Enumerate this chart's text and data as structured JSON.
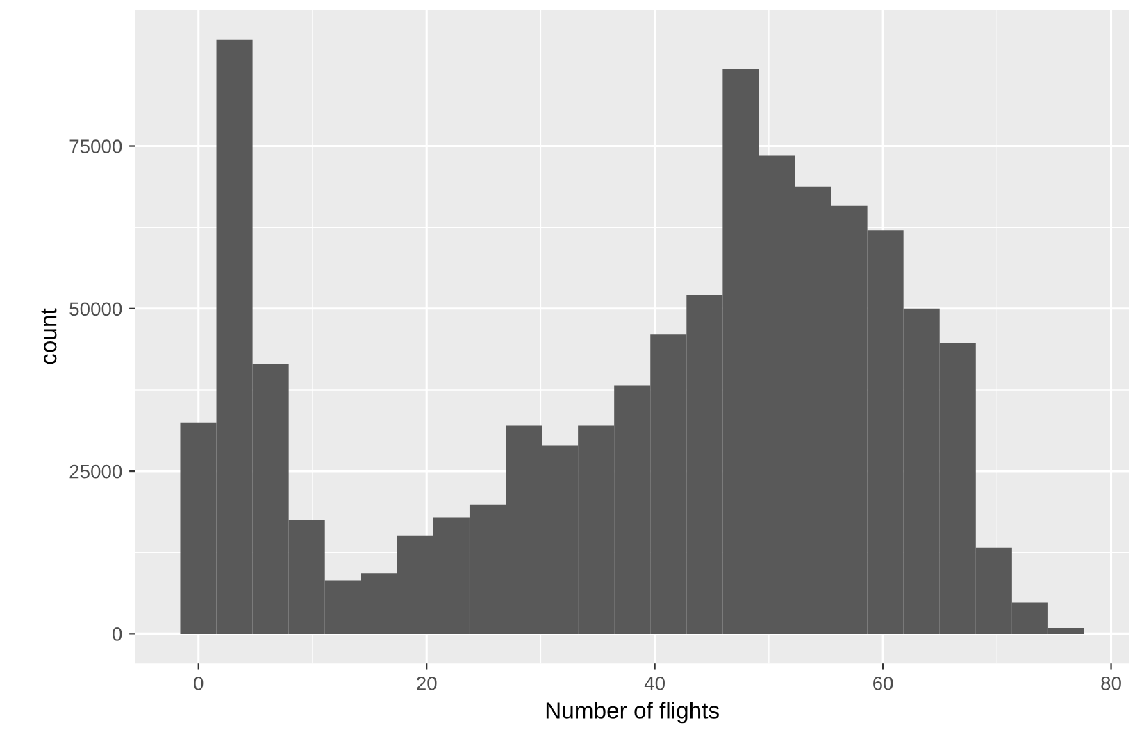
{
  "chart_data": {
    "type": "histogram",
    "xlabel": "Number of flights",
    "ylabel": "count",
    "color": "#595959",
    "bins": [
      -1.6,
      1.57,
      4.74,
      7.91,
      11.08,
      14.25,
      17.42,
      20.59,
      23.76,
      26.93,
      30.1,
      33.27,
      36.44,
      39.61,
      42.78,
      45.95,
      49.12,
      52.29,
      55.46,
      58.63,
      61.8,
      64.97,
      68.14,
      71.31,
      74.48,
      77.65
    ],
    "values": [
      32500,
      91400,
      41500,
      17500,
      8200,
      9300,
      15100,
      17900,
      19800,
      32000,
      28900,
      32000,
      38200,
      46000,
      52100,
      86800,
      73500,
      68800,
      65800,
      62000,
      50000,
      44700,
      13200,
      4800,
      900
    ],
    "xlim": [
      -5.56,
      81.6
    ],
    "ylim": [
      -4570,
      95970
    ],
    "xticks": [
      0,
      20,
      40,
      60,
      80
    ],
    "yticks": [
      0,
      25000,
      50000,
      75000
    ],
    "grid": true
  }
}
